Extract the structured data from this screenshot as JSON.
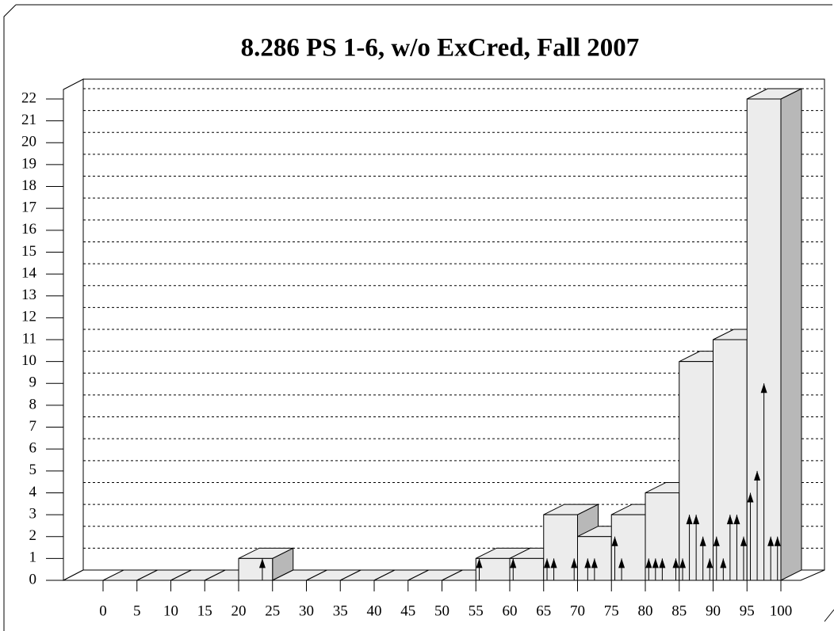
{
  "chart_data": {
    "type": "histogram",
    "title": "8.286 PS 1-6, w/o ExCred, Fall 2007",
    "bins": [
      0,
      5,
      10,
      15,
      20,
      25,
      30,
      35,
      40,
      45,
      50,
      55,
      60,
      65,
      70,
      75,
      80,
      85,
      90,
      95,
      100
    ],
    "values": [
      0,
      0,
      0,
      0,
      1,
      0,
      0,
      0,
      0,
      0,
      0,
      1,
      1,
      3,
      2,
      3,
      4,
      10,
      11,
      22
    ],
    "color": "#ececec",
    "side_color": "#b8b8b8",
    "scores": {
      "x": [
        23.5,
        55.5,
        60.5,
        65.5,
        66.5,
        69.5,
        71.5,
        72.5,
        75.5,
        76.5,
        80.5,
        81.5,
        82.5,
        84.5,
        85.5,
        86.5,
        87.5,
        88.5,
        89.5,
        90.5,
        91.5,
        92.5,
        93.5,
        94.5,
        95.5,
        96.5,
        97.5,
        98.5,
        99.5
      ],
      "values": [
        1,
        1,
        1,
        1,
        1,
        1,
        1,
        1,
        2,
        1,
        1,
        1,
        1,
        1,
        1,
        3,
        3,
        2,
        1,
        2,
        1,
        3,
        3,
        2,
        4,
        5,
        9,
        2,
        2
      ]
    },
    "xlim": [
      0,
      100
    ],
    "xticks": [
      0,
      5,
      10,
      15,
      20,
      25,
      30,
      35,
      40,
      45,
      50,
      55,
      60,
      65,
      70,
      75,
      80,
      85,
      90,
      95,
      100
    ],
    "ylim": [
      0,
      22
    ],
    "yticks": [
      0,
      1,
      2,
      3,
      4,
      5,
      6,
      7,
      8,
      9,
      10,
      11,
      12,
      13,
      14,
      15,
      16,
      17,
      18,
      19,
      20,
      21,
      22
    ],
    "grid": true
  }
}
